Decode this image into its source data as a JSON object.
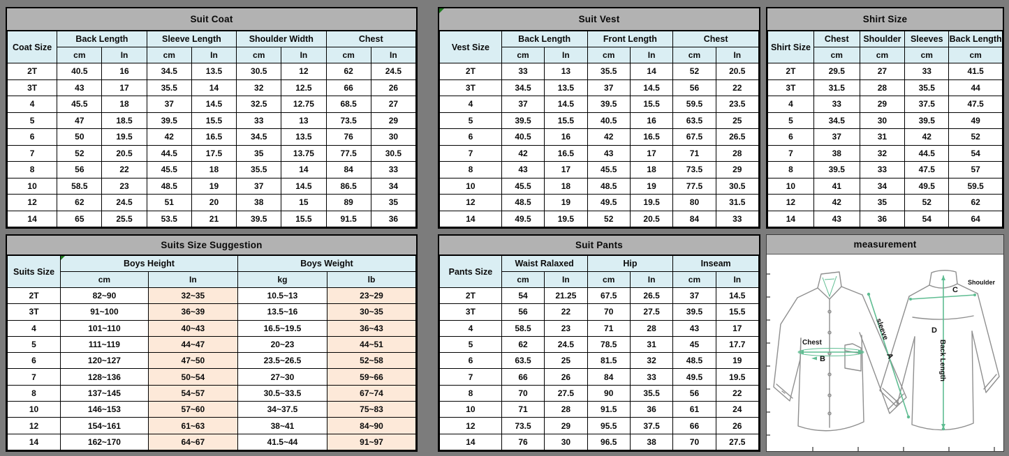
{
  "colors": {
    "page_bg": "#7c7c7c",
    "title_bg": "#b2b2b2",
    "header_bg": "#daeef3",
    "peach": "#fde9d9",
    "green": "#5fbd92",
    "flag_green": "#1f7a1f",
    "line_gray": "#8f8f8f"
  },
  "panels": {
    "coat": {
      "title": "Suit Coat",
      "corner": "Coat Size",
      "groups": [
        {
          "label": "Back Length",
          "subs": [
            "cm",
            "In"
          ]
        },
        {
          "label": "Sleeve Length",
          "subs": [
            "cm",
            "In"
          ]
        },
        {
          "label": "Shoulder Width",
          "subs": [
            "cm",
            "In"
          ]
        },
        {
          "label": "Chest",
          "subs": [
            "cm",
            "In"
          ]
        }
      ],
      "rows": [
        [
          "2T",
          "40.5",
          "16",
          "34.5",
          "13.5",
          "30.5",
          "12",
          "62",
          "24.5"
        ],
        [
          "3T",
          "43",
          "17",
          "35.5",
          "14",
          "32",
          "12.5",
          "66",
          "26"
        ],
        [
          "4",
          "45.5",
          "18",
          "37",
          "14.5",
          "32.5",
          "12.75",
          "68.5",
          "27"
        ],
        [
          "5",
          "47",
          "18.5",
          "39.5",
          "15.5",
          "33",
          "13",
          "73.5",
          "29"
        ],
        [
          "6",
          "50",
          "19.5",
          "42",
          "16.5",
          "34.5",
          "13.5",
          "76",
          "30"
        ],
        [
          "7",
          "52",
          "20.5",
          "44.5",
          "17.5",
          "35",
          "13.75",
          "77.5",
          "30.5"
        ],
        [
          "8",
          "56",
          "22",
          "45.5",
          "18",
          "35.5",
          "14",
          "84",
          "33"
        ],
        [
          "10",
          "58.5",
          "23",
          "48.5",
          "19",
          "37",
          "14.5",
          "86.5",
          "34"
        ],
        [
          "12",
          "62",
          "24.5",
          "51",
          "20",
          "38",
          "15",
          "89",
          "35"
        ],
        [
          "14",
          "65",
          "25.5",
          "53.5",
          "21",
          "39.5",
          "15.5",
          "91.5",
          "36"
        ]
      ]
    },
    "vest": {
      "title": "Suit Vest",
      "corner": "Vest Size",
      "groups": [
        {
          "label": "Back Length",
          "subs": [
            "cm",
            "In"
          ]
        },
        {
          "label": "Front Length",
          "subs": [
            "cm",
            "In"
          ]
        },
        {
          "label": "Chest",
          "subs": [
            "cm",
            "In"
          ]
        }
      ],
      "rows": [
        [
          "2T",
          "33",
          "13",
          "35.5",
          "14",
          "52",
          "20.5"
        ],
        [
          "3T",
          "34.5",
          "13.5",
          "37",
          "14.5",
          "56",
          "22"
        ],
        [
          "4",
          "37",
          "14.5",
          "39.5",
          "15.5",
          "59.5",
          "23.5"
        ],
        [
          "5",
          "39.5",
          "15.5",
          "40.5",
          "16",
          "63.5",
          "25"
        ],
        [
          "6",
          "40.5",
          "16",
          "42",
          "16.5",
          "67.5",
          "26.5"
        ],
        [
          "7",
          "42",
          "16.5",
          "43",
          "17",
          "71",
          "28"
        ],
        [
          "8",
          "43",
          "17",
          "45.5",
          "18",
          "73.5",
          "29"
        ],
        [
          "10",
          "45.5",
          "18",
          "48.5",
          "19",
          "77.5",
          "30.5"
        ],
        [
          "12",
          "48.5",
          "19",
          "49.5",
          "19.5",
          "80",
          "31.5"
        ],
        [
          "14",
          "49.5",
          "19.5",
          "52",
          "20.5",
          "84",
          "33"
        ]
      ]
    },
    "shirt": {
      "title": "Shirt Size",
      "corner": "Shirt Size",
      "groups": [
        {
          "label": "Chest",
          "subs": [
            "cm"
          ]
        },
        {
          "label": "Shoulder",
          "subs": [
            "cm"
          ]
        },
        {
          "label": "Sleeves",
          "subs": [
            "cm"
          ]
        },
        {
          "label": "Back Length",
          "subs": [
            "cm"
          ]
        }
      ],
      "rows": [
        [
          "2T",
          "29.5",
          "27",
          "33",
          "41.5"
        ],
        [
          "3T",
          "31.5",
          "28",
          "35.5",
          "44"
        ],
        [
          "4",
          "33",
          "29",
          "37.5",
          "47.5"
        ],
        [
          "5",
          "34.5",
          "30",
          "39.5",
          "49"
        ],
        [
          "6",
          "37",
          "31",
          "42",
          "52"
        ],
        [
          "7",
          "38",
          "32",
          "44.5",
          "54"
        ],
        [
          "8",
          "39.5",
          "33",
          "47.5",
          "57"
        ],
        [
          "10",
          "41",
          "34",
          "49.5",
          "59.5"
        ],
        [
          "12",
          "42",
          "35",
          "52",
          "62"
        ],
        [
          "14",
          "43",
          "36",
          "54",
          "64"
        ]
      ]
    },
    "suggestion": {
      "title": "Suits Size Suggestion",
      "corner": "Suits Size",
      "groups": [
        {
          "label": "Boys Height",
          "subs": [
            "cm",
            "In"
          ],
          "flag": true
        },
        {
          "label": "Boys Weight",
          "subs": [
            "kg",
            "lb"
          ]
        }
      ],
      "highlight_cols": [
        1,
        3
      ],
      "rows": [
        [
          "2T",
          "82~90",
          "32~35",
          "10.5~13",
          "23~29"
        ],
        [
          "3T",
          "91~100",
          "36~39",
          "13.5~16",
          "30~35"
        ],
        [
          "4",
          "101~110",
          "40~43",
          "16.5~19.5",
          "36~43"
        ],
        [
          "5",
          "111~119",
          "44~47",
          "20~23",
          "44~51"
        ],
        [
          "6",
          "120~127",
          "47~50",
          "23.5~26.5",
          "52~58"
        ],
        [
          "7",
          "128~136",
          "50~54",
          "27~30",
          "59~66"
        ],
        [
          "8",
          "137~145",
          "54~57",
          "30.5~33.5",
          "67~74"
        ],
        [
          "10",
          "146~153",
          "57~60",
          "34~37.5",
          "75~83"
        ],
        [
          "12",
          "154~161",
          "61~63",
          "38~41",
          "84~90"
        ],
        [
          "14",
          "162~170",
          "64~67",
          "41.5~44",
          "91~97"
        ]
      ]
    },
    "pants": {
      "title": "Suit Pants",
      "corner": "Pants Size",
      "groups": [
        {
          "label": "Waist Ralaxed",
          "subs": [
            "cm",
            "In"
          ]
        },
        {
          "label": "Hip",
          "subs": [
            "cm",
            "In"
          ]
        },
        {
          "label": "Inseam",
          "subs": [
            "cm",
            "In"
          ]
        }
      ],
      "rows": [
        [
          "2T",
          "54",
          "21.25",
          "67.5",
          "26.5",
          "37",
          "14.5"
        ],
        [
          "3T",
          "56",
          "22",
          "70",
          "27.5",
          "39.5",
          "15.5"
        ],
        [
          "4",
          "58.5",
          "23",
          "71",
          "28",
          "43",
          "17"
        ],
        [
          "5",
          "62",
          "24.5",
          "78.5",
          "31",
          "45",
          "17.7"
        ],
        [
          "6",
          "63.5",
          "25",
          "81.5",
          "32",
          "48.5",
          "19"
        ],
        [
          "7",
          "66",
          "26",
          "84",
          "33",
          "49.5",
          "19.5"
        ],
        [
          "8",
          "70",
          "27.5",
          "90",
          "35.5",
          "56",
          "22"
        ],
        [
          "10",
          "71",
          "28",
          "91.5",
          "36",
          "61",
          "24"
        ],
        [
          "12",
          "73.5",
          "29",
          "95.5",
          "37.5",
          "66",
          "26"
        ],
        [
          "14",
          "76",
          "30",
          "96.5",
          "38",
          "70",
          "27.5"
        ]
      ]
    },
    "measurement": {
      "title": "measurement",
      "labels": {
        "chest": "Chest",
        "chest_letter": "B",
        "sleeve": "sleeve",
        "sleeve_letter": "A",
        "shoulder": "Shoulder",
        "shoulder_letter": "C",
        "back_letter": "D",
        "back_length": "Back Length"
      }
    }
  }
}
